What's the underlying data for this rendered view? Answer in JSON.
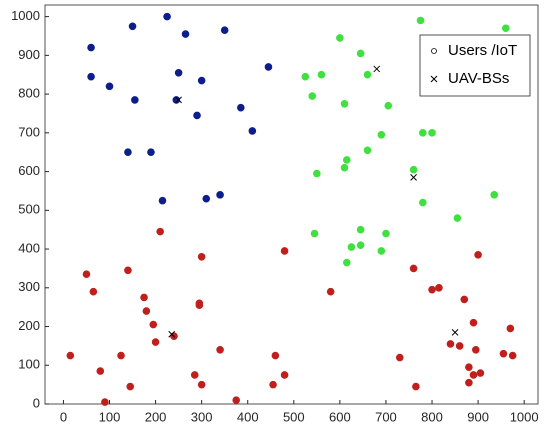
{
  "chart_data": {
    "type": "scatter",
    "xlim": [
      -40,
      1030
    ],
    "ylim": [
      0,
      1030
    ],
    "xticks": [
      0,
      100,
      200,
      300,
      400,
      500,
      600,
      700,
      800,
      900,
      1000
    ],
    "yticks": [
      0,
      100,
      200,
      300,
      400,
      500,
      600,
      700,
      800,
      900,
      1000
    ],
    "legend": "upper right",
    "series": [
      {
        "name": "Users /IoT",
        "marker": "o",
        "x": [
          150,
          225,
          265,
          350,
          60,
          60,
          100,
          155,
          250,
          300,
          245,
          290,
          385,
          410,
          445,
          140,
          190,
          215,
          310,
          340,
          775,
          960,
          600,
          645,
          525,
          560,
          660,
          540,
          610,
          705,
          690,
          780,
          800,
          660,
          615,
          610,
          760,
          550,
          935,
          780,
          855,
          645,
          545,
          700,
          625,
          645,
          690,
          615,
          210,
          480,
          50,
          140,
          65,
          300,
          175,
          180,
          195,
          200,
          295,
          295,
          580,
          760,
          900,
          815,
          800,
          870,
          890,
          970,
          240,
          80,
          125,
          15,
          145,
          90,
          285,
          300,
          340,
          375,
          455,
          460,
          480,
          730,
          765,
          840,
          860,
          895,
          880,
          905,
          890,
          880,
          955,
          975
        ],
        "values": [
          975,
          1000,
          955,
          965,
          920,
          845,
          820,
          785,
          855,
          835,
          785,
          745,
          765,
          705,
          870,
          650,
          650,
          525,
          530,
          540,
          990,
          970,
          945,
          905,
          845,
          850,
          850,
          795,
          775,
          770,
          695,
          700,
          700,
          655,
          630,
          610,
          605,
          595,
          540,
          520,
          480,
          450,
          440,
          440,
          405,
          410,
          395,
          365,
          445,
          395,
          335,
          345,
          290,
          380,
          275,
          240,
          205,
          160,
          260,
          255,
          290,
          350,
          385,
          300,
          295,
          270,
          210,
          195,
          175,
          85,
          125,
          125,
          45,
          5,
          75,
          50,
          140,
          10,
          50,
          125,
          75,
          120,
          45,
          155,
          150,
          140,
          95,
          80,
          75,
          55,
          130,
          125
        ],
        "colors": [
          "#0d1e8c",
          "#0d1e8c",
          "#0d1e8c",
          "#0d1e8c",
          "#0d1e8c",
          "#0d1e8c",
          "#0d1e8c",
          "#0d1e8c",
          "#0d1e8c",
          "#0d1e8c",
          "#0d1e8c",
          "#0d1e8c",
          "#0d1e8c",
          "#0d1e8c",
          "#0d1e8c",
          "#0d1e8c",
          "#0d1e8c",
          "#0d1e8c",
          "#0d1e8c",
          "#0d1e8c",
          "#3fe03f",
          "#3fe03f",
          "#3fe03f",
          "#3fe03f",
          "#3fe03f",
          "#3fe03f",
          "#3fe03f",
          "#3fe03f",
          "#3fe03f",
          "#3fe03f",
          "#3fe03f",
          "#3fe03f",
          "#3fe03f",
          "#3fe03f",
          "#3fe03f",
          "#3fe03f",
          "#3fe03f",
          "#3fe03f",
          "#3fe03f",
          "#3fe03f",
          "#3fe03f",
          "#3fe03f",
          "#3fe03f",
          "#3fe03f",
          "#3fe03f",
          "#3fe03f",
          "#3fe03f",
          "#3fe03f",
          "#c0201d",
          "#c0201d",
          "#c0201d",
          "#c0201d",
          "#c0201d",
          "#c0201d",
          "#c0201d",
          "#c0201d",
          "#c0201d",
          "#c0201d",
          "#c0201d",
          "#c0201d",
          "#c0201d",
          "#c0201d",
          "#c0201d",
          "#c0201d",
          "#c0201d",
          "#c0201d",
          "#c0201d",
          "#c0201d",
          "#c0201d",
          "#c0201d",
          "#c0201d",
          "#c0201d",
          "#c0201d",
          "#c0201d",
          "#c0201d",
          "#c0201d",
          "#c0201d",
          "#c0201d",
          "#c0201d",
          "#c0201d",
          "#c0201d",
          "#c0201d",
          "#c0201d",
          "#c0201d",
          "#c0201d",
          "#c0201d",
          "#c0201d",
          "#c0201d",
          "#c0201d",
          "#c0201d",
          "#c0201d",
          "#c0201d"
        ]
      },
      {
        "name": "UAV-BSs",
        "marker": "x",
        "color": "#000000",
        "x": [
          680,
          250,
          760,
          235,
          850
        ],
        "values": [
          865,
          785,
          585,
          180,
          185
        ]
      }
    ]
  }
}
